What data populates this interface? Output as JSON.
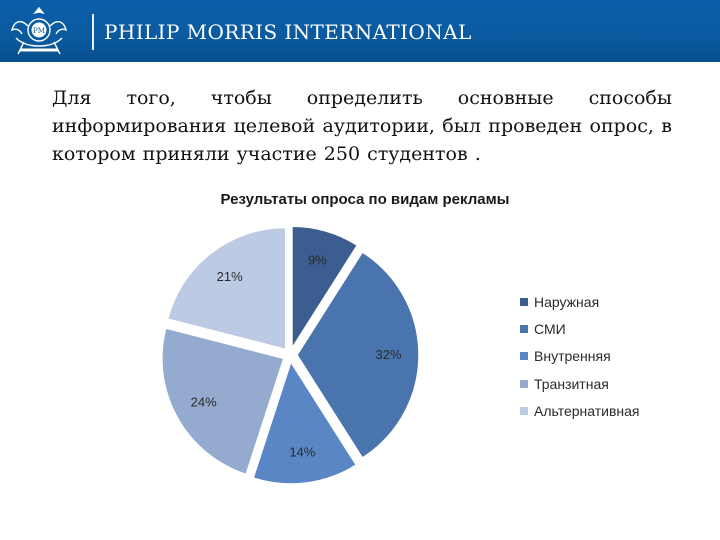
{
  "header": {
    "brand": "PHILIP MORRIS INTERNATIONAL",
    "logo_icon": "pmi-crest-logo-icon"
  },
  "intro_text": "Для того, чтобы определить основные способы информирования целевой аудитории, был проведен опрос, в котором приняли участие 250 студентов .",
  "chart_data": {
    "type": "pie",
    "title": "Результаты опроса по видам рекламы",
    "categories": [
      "Наружная",
      "СМИ",
      "Внутренняя",
      "Транзитная",
      "Альтернативная"
    ],
    "values": [
      9,
      32,
      14,
      24,
      21
    ],
    "value_labels": [
      "9%",
      "32%",
      "14%",
      "24%",
      "21%"
    ],
    "unit": "%",
    "exploded": true,
    "legend_position": "right",
    "colors": [
      "#3b5d8f",
      "#4a74ad",
      "#5a86c6",
      "#94aacf",
      "#bccbe3"
    ]
  }
}
